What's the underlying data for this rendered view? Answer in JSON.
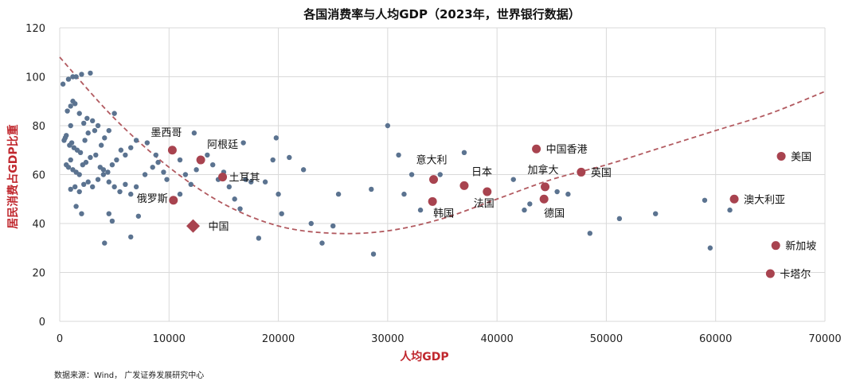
{
  "colors": {
    "others": "#5b7390",
    "highlight": "#a8434f",
    "china": "#a8434f",
    "trend": "#b25a60",
    "grid": "#d9d9d9",
    "axis_title": "#c0272d"
  },
  "source": "数据来源：Wind， 广发证券发展研究中心",
  "chart_data": {
    "type": "scatter",
    "title": "各国消费率与人均GDP（2023年，世界银行数据）",
    "xlabel": "人均GDP",
    "ylabel": "居民消费占GDP比重",
    "xlim": [
      0,
      70000
    ],
    "ylim": [
      0,
      120
    ],
    "xticks": [
      "0",
      "10000",
      "20000",
      "30000",
      "40000",
      "50000",
      "60000",
      "70000"
    ],
    "yticks": [
      "0",
      "20",
      "40",
      "60",
      "80",
      "100",
      "120"
    ],
    "grid": true,
    "legend": "none",
    "trendline": {
      "style": "dashed",
      "type": "quadratic",
      "points": [
        [
          0,
          108
        ],
        [
          5000,
          83
        ],
        [
          10000,
          63
        ],
        [
          15000,
          48
        ],
        [
          20000,
          39
        ],
        [
          25000,
          36
        ],
        [
          30000,
          37
        ],
        [
          35000,
          42
        ],
        [
          40000,
          50
        ],
        [
          45000,
          58
        ],
        [
          50000,
          64
        ],
        [
          55000,
          71
        ],
        [
          60000,
          78
        ],
        [
          65000,
          85
        ],
        [
          70000,
          94
        ]
      ]
    },
    "highlighted": [
      {
        "name": "墨西哥",
        "x": 10300,
        "y": 70
      },
      {
        "name": "阿根廷",
        "x": 12900,
        "y": 66
      },
      {
        "name": "土耳其",
        "x": 14900,
        "y": 59
      },
      {
        "name": "俄罗斯",
        "x": 10400,
        "y": 49.5
      },
      {
        "name": "意大利",
        "x": 34200,
        "y": 58
      },
      {
        "name": "韩国",
        "x": 34100,
        "y": 49
      },
      {
        "name": "日本",
        "x": 37000,
        "y": 55.5
      },
      {
        "name": "法国",
        "x": 39100,
        "y": 53
      },
      {
        "name": "中国香港",
        "x": 43600,
        "y": 70.5
      },
      {
        "name": "加拿大",
        "x": 44400,
        "y": 55
      },
      {
        "name": "德国",
        "x": 44300,
        "y": 50
      },
      {
        "name": "英国",
        "x": 47700,
        "y": 61
      },
      {
        "name": "美国",
        "x": 66000,
        "y": 67.5
      },
      {
        "name": "澳大利亚",
        "x": 61700,
        "y": 50
      },
      {
        "name": "新加坡",
        "x": 65500,
        "y": 31
      },
      {
        "name": "卡塔尔",
        "x": 65000,
        "y": 19.5
      }
    ],
    "china": {
      "name": "中国",
      "x": 12200,
      "y": 39
    },
    "others": [
      [
        300,
        97
      ],
      [
        800,
        99
      ],
      [
        1200,
        100
      ],
      [
        1500,
        100
      ],
      [
        2000,
        101
      ],
      [
        2800,
        101.5
      ],
      [
        500,
        75
      ],
      [
        700,
        86
      ],
      [
        1000,
        88
      ],
      [
        1200,
        90
      ],
      [
        1400,
        89
      ],
      [
        1000,
        80
      ],
      [
        1800,
        85
      ],
      [
        2200,
        81
      ],
      [
        2500,
        83
      ],
      [
        3000,
        82
      ],
      [
        3200,
        78
      ],
      [
        400,
        74
      ],
      [
        600,
        76
      ],
      [
        900,
        72
      ],
      [
        1100,
        73
      ],
      [
        1300,
        71
      ],
      [
        1600,
        70
      ],
      [
        1900,
        69
      ],
      [
        2300,
        74
      ],
      [
        2600,
        77
      ],
      [
        3500,
        80
      ],
      [
        3800,
        72
      ],
      [
        4100,
        75
      ],
      [
        4500,
        78
      ],
      [
        5000,
        85
      ],
      [
        600,
        64
      ],
      [
        800,
        63
      ],
      [
        1000,
        66
      ],
      [
        1200,
        62
      ],
      [
        1500,
        61
      ],
      [
        1800,
        60
      ],
      [
        2100,
        64
      ],
      [
        2400,
        65
      ],
      [
        2800,
        67
      ],
      [
        3300,
        68
      ],
      [
        3700,
        63
      ],
      [
        4000,
        62
      ],
      [
        4400,
        61
      ],
      [
        4800,
        64
      ],
      [
        5200,
        66
      ],
      [
        5600,
        70
      ],
      [
        6000,
        68
      ],
      [
        6500,
        71
      ],
      [
        7000,
        74
      ],
      [
        1000,
        54
      ],
      [
        1400,
        55
      ],
      [
        1800,
        53
      ],
      [
        2200,
        56
      ],
      [
        2600,
        57
      ],
      [
        3000,
        55
      ],
      [
        3500,
        58
      ],
      [
        4000,
        60
      ],
      [
        4500,
        57
      ],
      [
        5000,
        55
      ],
      [
        5500,
        53
      ],
      [
        6000,
        56
      ],
      [
        6500,
        52
      ],
      [
        7000,
        55
      ],
      [
        1500,
        47
      ],
      [
        2000,
        44
      ],
      [
        4500,
        44
      ],
      [
        4800,
        41
      ],
      [
        7200,
        43
      ],
      [
        4100,
        32
      ],
      [
        6500,
        34.5
      ],
      [
        7800,
        60
      ],
      [
        8500,
        63
      ],
      [
        9000,
        65
      ],
      [
        9500,
        61
      ],
      [
        8000,
        73
      ],
      [
        8800,
        68
      ],
      [
        9800,
        58
      ],
      [
        11000,
        66
      ],
      [
        11500,
        60
      ],
      [
        11000,
        52
      ],
      [
        12000,
        56
      ],
      [
        12500,
        62
      ],
      [
        12300,
        77
      ],
      [
        13500,
        68
      ],
      [
        14000,
        64
      ],
      [
        14500,
        58
      ],
      [
        15000,
        61
      ],
      [
        15500,
        55
      ],
      [
        16000,
        50
      ],
      [
        16500,
        46
      ],
      [
        17000,
        58
      ],
      [
        16800,
        73
      ],
      [
        17500,
        57
      ],
      [
        18200,
        34
      ],
      [
        18800,
        57
      ],
      [
        19500,
        66
      ],
      [
        19800,
        75
      ],
      [
        20000,
        52
      ],
      [
        20300,
        44
      ],
      [
        21000,
        67
      ],
      [
        22300,
        62
      ],
      [
        23000,
        40
      ],
      [
        24000,
        32
      ],
      [
        25000,
        39
      ],
      [
        25500,
        52
      ],
      [
        28500,
        54
      ],
      [
        28700,
        27.5
      ],
      [
        30000,
        80
      ],
      [
        31000,
        68
      ],
      [
        31500,
        52
      ],
      [
        32200,
        60
      ],
      [
        33000,
        45.5
      ],
      [
        34800,
        60
      ],
      [
        37000,
        69
      ],
      [
        41500,
        58
      ],
      [
        42500,
        45.5
      ],
      [
        43000,
        48
      ],
      [
        45500,
        53
      ],
      [
        46500,
        52
      ],
      [
        48500,
        36
      ],
      [
        51200,
        42
      ],
      [
        54500,
        44
      ],
      [
        59000,
        49.5
      ],
      [
        59500,
        30
      ],
      [
        61300,
        45.5
      ]
    ]
  }
}
